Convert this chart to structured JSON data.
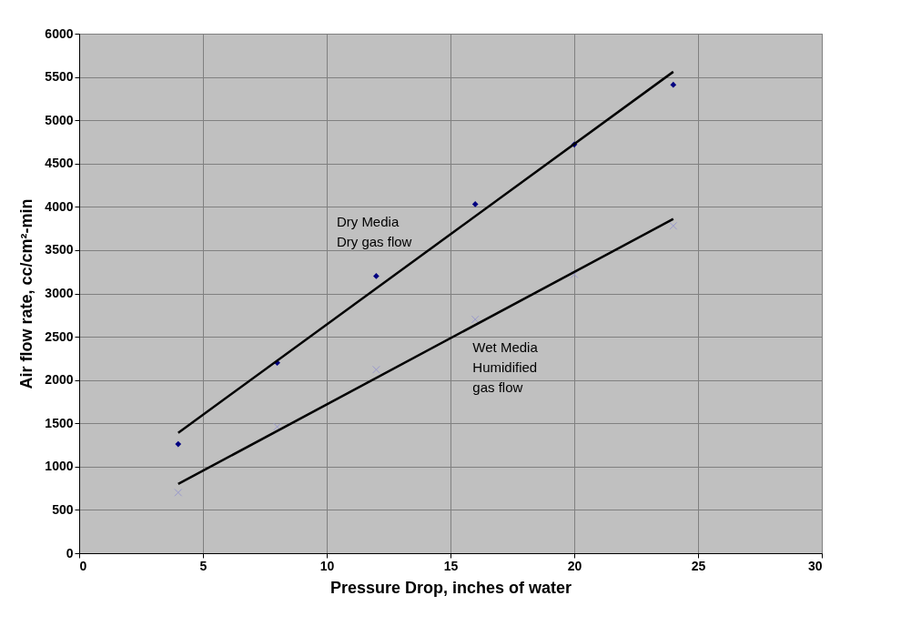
{
  "chart_data": {
    "type": "scatter",
    "xlabel": "Pressure Drop, inches of water",
    "ylabel": "Air flow rate, cc/cm²-min",
    "xlim": [
      0,
      30
    ],
    "xticks": [
      0,
      5,
      10,
      15,
      20,
      25,
      30
    ],
    "ylim": [
      0,
      6000
    ],
    "yticks": [
      0,
      500,
      1000,
      1500,
      2000,
      2500,
      3000,
      3500,
      4000,
      4500,
      5000,
      5500,
      6000
    ],
    "grid": true,
    "series": [
      {
        "marker": "diamond",
        "color": "#000080",
        "x": [
          4,
          8,
          12,
          16,
          20,
          24
        ],
        "values": [
          1260,
          2200,
          3200,
          4030,
          4720,
          5410
        ]
      },
      {
        "marker": "cross",
        "color": "#9999cc",
        "x": [
          4,
          8,
          12,
          16,
          20,
          24
        ],
        "values": [
          700,
          1460,
          2120,
          2700,
          3220,
          3780
        ]
      },
      {
        "type": "line",
        "name": "Dry Media\nDry gas flow",
        "marker": "none",
        "color": "#000000",
        "x": [
          4,
          24
        ],
        "values": [
          1390,
          5560
        ]
      },
      {
        "type": "line",
        "name": "Wet Media\nHumidified\ngas flow",
        "marker": "none",
        "color": "#000000",
        "x": [
          4,
          24
        ],
        "values": [
          800,
          3860
        ]
      }
    ]
  }
}
